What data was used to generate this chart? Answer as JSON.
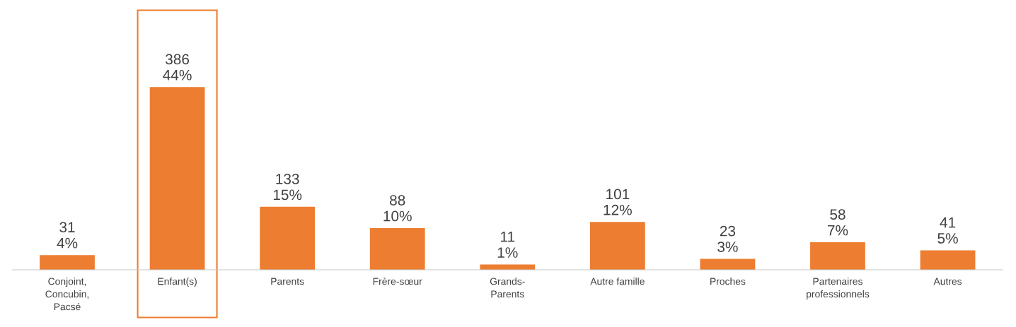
{
  "chart_data": {
    "type": "bar",
    "categories": [
      "Conjoint,\nConcubin,\nPacsé",
      "Enfant(s)",
      "Parents",
      "Frère-sœur",
      "Grands-\nParents",
      "Autre famille",
      "Proches",
      "Partenaires\nprofessionnels",
      "Autres"
    ],
    "values": [
      31,
      386,
      133,
      88,
      11,
      101,
      23,
      58,
      41
    ],
    "color": "#ed7d31",
    "value_labels": [
      "31\n4%",
      "386\n44%",
      "133\n15%",
      "88\n10%",
      "11\n1%",
      "101\n12%",
      "23\n3%",
      "58\n7%",
      "41\n5%"
    ],
    "grid": false,
    "legend": false
  }
}
